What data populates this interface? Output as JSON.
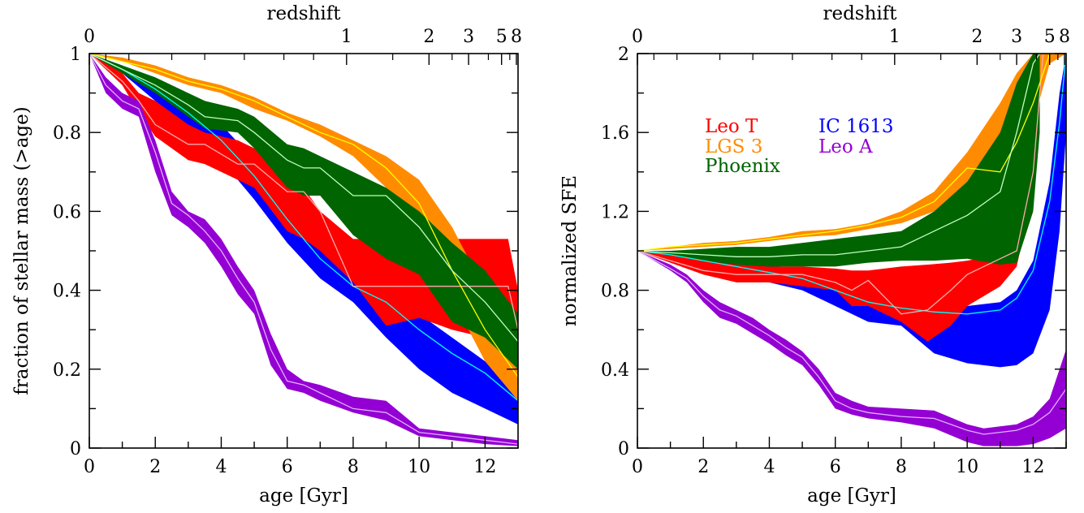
{
  "chart_data": [
    {
      "type": "area",
      "xlabel": "age [Gyr]",
      "ylabel": "fraction of stellar mass  (>age)",
      "top_axis_label": "redshift",
      "xlim": [
        0,
        13
      ],
      "ylim": [
        0,
        1
      ],
      "x_ticks": [
        0,
        2,
        4,
        6,
        8,
        10,
        12
      ],
      "y_ticks": [
        0,
        0.2,
        0.4,
        0.6,
        0.8,
        1
      ],
      "y_tick_labels": [
        "0",
        "0.2",
        "0.4",
        "0.6",
        "0.8",
        "1"
      ],
      "top_ticks": [
        {
          "label": "0",
          "age": 0
        },
        {
          "label": "1",
          "age": 7.8
        },
        {
          "label": "2",
          "age": 10.3
        },
        {
          "label": "3",
          "age": 11.5
        },
        {
          "label": "5",
          "age": 12.5
        },
        {
          "label": "8",
          "age": 12.95
        }
      ],
      "series": [
        {
          "name": "IC 1613",
          "color": "#0000ff",
          "line_color": "#00ffff",
          "x": [
            0,
            1,
            2,
            3,
            4,
            5,
            6,
            7,
            8,
            9,
            10,
            11,
            12,
            13
          ],
          "upper": [
            1.0,
            0.97,
            0.93,
            0.88,
            0.82,
            0.73,
            0.62,
            0.52,
            0.45,
            0.4,
            0.34,
            0.28,
            0.22,
            0.15
          ],
          "center": [
            1.0,
            0.96,
            0.91,
            0.85,
            0.78,
            0.69,
            0.58,
            0.48,
            0.41,
            0.37,
            0.3,
            0.24,
            0.19,
            0.12
          ],
          "lower": [
            1.0,
            0.95,
            0.88,
            0.81,
            0.73,
            0.63,
            0.52,
            0.43,
            0.37,
            0.28,
            0.2,
            0.14,
            0.1,
            0.06
          ]
        },
        {
          "name": "Leo T",
          "color": "#ff0000",
          "line_color": "#ffaaaa",
          "x": [
            0,
            1,
            1.5,
            2,
            3,
            3.5,
            4.5,
            5,
            6,
            6.5,
            7,
            8,
            9,
            10,
            11,
            12,
            12.7,
            13
          ],
          "upper": [
            1.0,
            0.95,
            0.9,
            0.88,
            0.82,
            0.8,
            0.78,
            0.76,
            0.71,
            0.66,
            0.6,
            0.53,
            0.53,
            0.53,
            0.53,
            0.53,
            0.53,
            0.4
          ],
          "center": [
            1.0,
            0.93,
            0.88,
            0.82,
            0.77,
            0.77,
            0.72,
            0.72,
            0.65,
            0.65,
            0.6,
            0.41,
            0.41,
            0.41,
            0.41,
            0.41,
            0.41,
            0.3
          ],
          "lower": [
            1.0,
            0.92,
            0.85,
            0.79,
            0.73,
            0.72,
            0.68,
            0.66,
            0.55,
            0.53,
            0.5,
            0.42,
            0.31,
            0.33,
            0.3,
            0.28,
            0.25,
            0.22
          ]
        },
        {
          "name": "LGS 3",
          "color": "#ff8c00",
          "line_color": "#ffff00",
          "x": [
            0,
            1,
            2,
            3,
            4,
            5,
            6,
            7,
            8,
            9,
            10,
            11,
            12,
            13
          ],
          "upper": [
            1.0,
            0.99,
            0.97,
            0.94,
            0.92,
            0.89,
            0.85,
            0.82,
            0.78,
            0.74,
            0.68,
            0.56,
            0.4,
            0.28
          ],
          "center": [
            1.0,
            0.98,
            0.96,
            0.93,
            0.91,
            0.88,
            0.84,
            0.8,
            0.77,
            0.71,
            0.62,
            0.45,
            0.3,
            0.18
          ],
          "lower": [
            1.0,
            0.98,
            0.95,
            0.92,
            0.9,
            0.86,
            0.83,
            0.79,
            0.74,
            0.66,
            0.52,
            0.38,
            0.22,
            0.12
          ]
        },
        {
          "name": "Phoenix",
          "color": "#006400",
          "line_color": "#c0ffc0",
          "x": [
            0,
            1,
            2,
            3,
            3.5,
            4.5,
            5,
            6,
            6.5,
            7,
            8,
            9,
            10,
            11,
            12,
            13
          ],
          "upper": [
            1.0,
            0.97,
            0.94,
            0.9,
            0.88,
            0.86,
            0.84,
            0.77,
            0.76,
            0.74,
            0.7,
            0.66,
            0.6,
            0.52,
            0.45,
            0.34
          ],
          "center": [
            1.0,
            0.96,
            0.92,
            0.87,
            0.84,
            0.83,
            0.8,
            0.73,
            0.71,
            0.71,
            0.64,
            0.64,
            0.56,
            0.45,
            0.37,
            0.27
          ],
          "lower": [
            1.0,
            0.95,
            0.9,
            0.84,
            0.81,
            0.8,
            0.76,
            0.66,
            0.64,
            0.64,
            0.54,
            0.48,
            0.44,
            0.32,
            0.28,
            0.2
          ]
        },
        {
          "name": "Leo A",
          "color": "#9400d3",
          "line_color": "#e0b0ff",
          "x": [
            0,
            0.5,
            1,
            1.5,
            2,
            2.5,
            3,
            3.5,
            4,
            4.5,
            5,
            5.5,
            6,
            6.5,
            7,
            8,
            9,
            10,
            11,
            12,
            13
          ],
          "upper": [
            1.0,
            0.94,
            0.9,
            0.88,
            0.78,
            0.65,
            0.6,
            0.58,
            0.53,
            0.46,
            0.4,
            0.29,
            0.2,
            0.17,
            0.16,
            0.13,
            0.12,
            0.05,
            0.04,
            0.03,
            0.02
          ],
          "center": [
            1.0,
            0.92,
            0.88,
            0.86,
            0.75,
            0.62,
            0.59,
            0.55,
            0.5,
            0.43,
            0.37,
            0.25,
            0.17,
            0.16,
            0.14,
            0.1,
            0.09,
            0.04,
            0.03,
            0.02,
            0.01
          ],
          "lower": [
            1.0,
            0.9,
            0.86,
            0.84,
            0.7,
            0.59,
            0.56,
            0.52,
            0.46,
            0.39,
            0.34,
            0.21,
            0.15,
            0.14,
            0.12,
            0.09,
            0.07,
            0.03,
            0.02,
            0.01,
            0.005
          ]
        }
      ]
    },
    {
      "type": "area",
      "xlabel": "age [Gyr]",
      "ylabel": "normalized SFE",
      "top_axis_label": "redshift",
      "xlim": [
        0,
        13
      ],
      "ylim": [
        0,
        2
      ],
      "x_ticks": [
        0,
        2,
        4,
        6,
        8,
        10,
        12
      ],
      "y_ticks": [
        0,
        0.4,
        0.8,
        1.2,
        1.6,
        2
      ],
      "y_tick_labels": [
        "0",
        "0.4",
        "0.8",
        "1.2",
        "1.6",
        "2"
      ],
      "top_ticks": [
        {
          "label": "0",
          "age": 0
        },
        {
          "label": "1",
          "age": 7.8
        },
        {
          "label": "2",
          "age": 10.3
        },
        {
          "label": "3",
          "age": 11.5
        },
        {
          "label": "5",
          "age": 12.5
        },
        {
          "label": "8",
          "age": 12.95
        }
      ],
      "legend": [
        {
          "name": "Leo T",
          "color": "#ff0000"
        },
        {
          "name": "IC 1613",
          "color": "#0000ff"
        },
        {
          "name": "LGS 3",
          "color": "#ff8c00"
        },
        {
          "name": "Leo A",
          "color": "#9400d3"
        },
        {
          "name": "Phoenix",
          "color": "#006400"
        }
      ],
      "series": [
        {
          "name": "IC 1613",
          "color": "#0000ff",
          "line_color": "#00ffff",
          "x": [
            0,
            1,
            2,
            3,
            4,
            5,
            6,
            7,
            8,
            9,
            10,
            11,
            11.5,
            12,
            12.5,
            12.8,
            13
          ],
          "upper": [
            1.0,
            0.99,
            0.97,
            0.94,
            0.93,
            0.9,
            0.88,
            0.82,
            0.78,
            0.74,
            0.72,
            0.74,
            0.8,
            0.95,
            1.35,
            1.8,
            2.0
          ],
          "center": [
            1.0,
            0.98,
            0.95,
            0.92,
            0.89,
            0.86,
            0.8,
            0.74,
            0.71,
            0.69,
            0.68,
            0.7,
            0.76,
            0.9,
            1.25,
            1.65,
            2.0
          ],
          "lower": [
            1.0,
            0.96,
            0.92,
            0.88,
            0.84,
            0.8,
            0.72,
            0.64,
            0.62,
            0.48,
            0.43,
            0.41,
            0.42,
            0.48,
            0.7,
            1.1,
            1.6
          ]
        },
        {
          "name": "Leo T",
          "color": "#ff0000",
          "line_color": "#ffaaaa",
          "x": [
            0,
            1,
            2,
            3,
            4,
            5,
            6,
            6.5,
            7,
            8,
            8.8,
            9.5,
            10,
            11,
            11.5,
            12,
            12.3
          ],
          "upper": [
            1.0,
            0.98,
            0.95,
            0.93,
            0.92,
            0.92,
            0.91,
            0.9,
            0.9,
            0.92,
            0.93,
            0.94,
            0.95,
            0.98,
            1.05,
            1.5,
            2.0
          ],
          "center": [
            1.0,
            0.95,
            0.9,
            0.88,
            0.88,
            0.88,
            0.84,
            0.8,
            0.85,
            0.68,
            0.7,
            0.8,
            0.88,
            0.96,
            1.0,
            1.4,
            2.0
          ],
          "lower": [
            1.0,
            0.94,
            0.88,
            0.84,
            0.84,
            0.82,
            0.8,
            0.72,
            0.72,
            0.64,
            0.54,
            0.62,
            0.72,
            0.82,
            0.92,
            1.3,
            2.0
          ]
        },
        {
          "name": "LGS 3",
          "color": "#ff8c00",
          "line_color": "#ffff00",
          "x": [
            0,
            1,
            2,
            3,
            4,
            5,
            6,
            7,
            8,
            9,
            10,
            11,
            11.5,
            12,
            12.5,
            13
          ],
          "upper": [
            1.0,
            1.02,
            1.04,
            1.05,
            1.07,
            1.1,
            1.11,
            1.14,
            1.2,
            1.3,
            1.5,
            1.75,
            1.9,
            2.0,
            2.0,
            2.0
          ],
          "center": [
            1.0,
            1.02,
            1.03,
            1.04,
            1.06,
            1.08,
            1.1,
            1.13,
            1.17,
            1.25,
            1.42,
            1.4,
            1.55,
            1.75,
            2.0,
            2.0
          ],
          "lower": [
            1.0,
            1.01,
            1.02,
            1.03,
            1.05,
            1.07,
            1.08,
            1.11,
            1.14,
            1.2,
            1.3,
            1.38,
            1.48,
            1.65,
            1.95,
            2.0
          ]
        },
        {
          "name": "Phoenix",
          "color": "#006400",
          "line_color": "#c0ffc0",
          "x": [
            0,
            1,
            2,
            3,
            4,
            5,
            6,
            7,
            8,
            9,
            10,
            11,
            11.5,
            12,
            12.2
          ],
          "upper": [
            1.0,
            1.0,
            1.01,
            1.02,
            1.02,
            1.04,
            1.06,
            1.08,
            1.1,
            1.2,
            1.35,
            1.6,
            1.85,
            2.0,
            2.0
          ],
          "center": [
            1.0,
            0.99,
            0.98,
            0.97,
            0.97,
            0.98,
            0.98,
            1.0,
            1.02,
            1.1,
            1.18,
            1.3,
            1.6,
            1.95,
            2.0
          ],
          "lower": [
            1.0,
            0.98,
            0.95,
            0.93,
            0.92,
            0.92,
            0.92,
            0.94,
            0.95,
            0.95,
            0.96,
            0.93,
            0.94,
            1.2,
            1.6
          ]
        },
        {
          "name": "Leo A",
          "color": "#9400d3",
          "line_color": "#e0b0ff",
          "x": [
            0,
            1,
            1.5,
            2,
            2.5,
            3,
            3.5,
            4,
            4.5,
            5,
            5.5,
            6,
            6.5,
            7,
            8,
            9,
            10,
            10.5,
            11,
            11.5,
            12,
            12.5,
            13
          ],
          "upper": [
            1.0,
            0.93,
            0.88,
            0.8,
            0.74,
            0.7,
            0.66,
            0.6,
            0.55,
            0.49,
            0.4,
            0.28,
            0.24,
            0.21,
            0.2,
            0.19,
            0.12,
            0.1,
            0.11,
            0.12,
            0.16,
            0.25,
            0.5
          ],
          "center": [
            1.0,
            0.91,
            0.86,
            0.77,
            0.7,
            0.67,
            0.62,
            0.57,
            0.51,
            0.46,
            0.36,
            0.24,
            0.2,
            0.18,
            0.16,
            0.15,
            0.09,
            0.07,
            0.08,
            0.09,
            0.12,
            0.18,
            0.3
          ],
          "lower": [
            1.0,
            0.9,
            0.84,
            0.74,
            0.66,
            0.63,
            0.58,
            0.53,
            0.47,
            0.42,
            0.32,
            0.2,
            0.17,
            0.15,
            0.13,
            0.1,
            0.03,
            0.01,
            0.01,
            0.01,
            0.02,
            0.05,
            0.1
          ]
        }
      ]
    }
  ]
}
